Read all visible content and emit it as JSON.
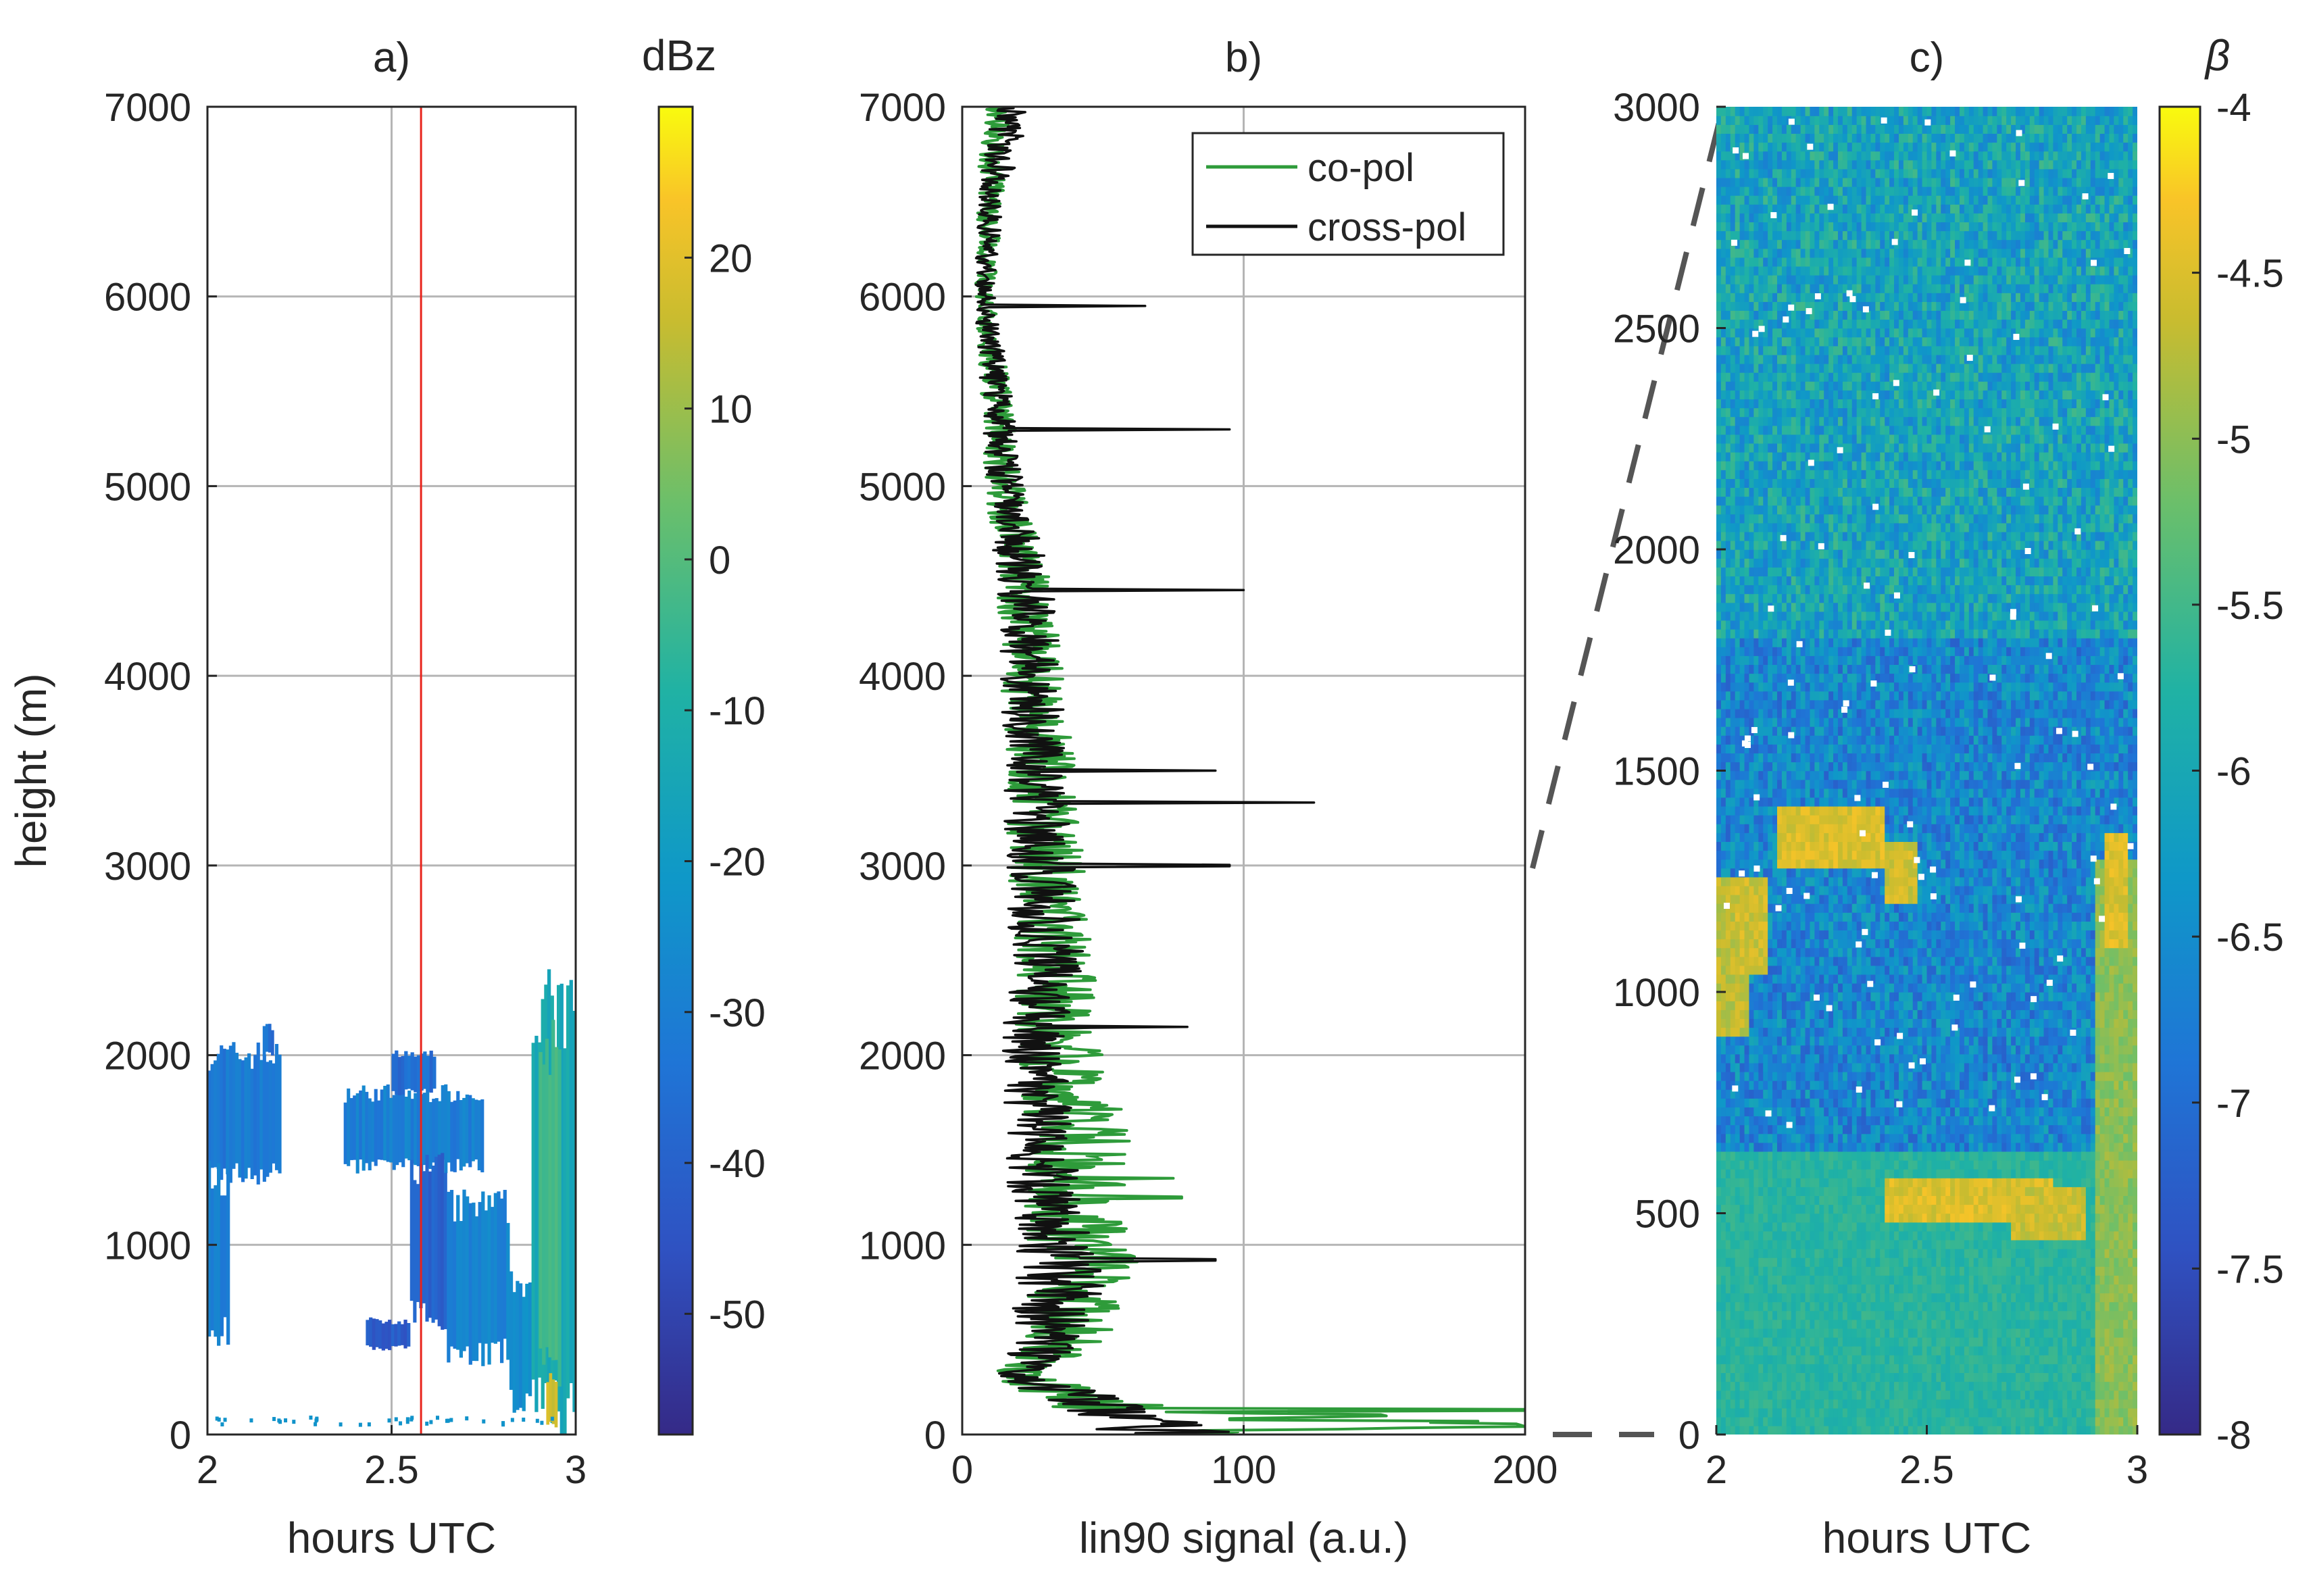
{
  "chart_data": [
    {
      "panel": "a)",
      "type": "heatmap",
      "title": "a)",
      "xlabel": "hours UTC",
      "ylabel": "height (m)",
      "xlim": [
        2,
        3
      ],
      "ylim": [
        0,
        7000
      ],
      "xticks": [
        2,
        2.5,
        3
      ],
      "xtick_labels": [
        "2",
        "2.5",
        "3"
      ],
      "yticks": [
        0,
        1000,
        2000,
        3000,
        4000,
        5000,
        6000,
        7000
      ],
      "ytick_labels": [
        "0",
        "1000",
        "2000",
        "3000",
        "4000",
        "5000",
        "6000",
        "7000"
      ],
      "grid": true,
      "marker_line": {
        "x": 2.58,
        "color": "#e8241c"
      },
      "colorbar": {
        "label": "dBz",
        "range": [
          -58,
          30
        ],
        "ticks": [
          -50,
          -40,
          -30,
          -20,
          -10,
          0,
          10,
          20
        ],
        "tick_labels": [
          "-50",
          "-40",
          "-30",
          "-20",
          "-10",
          "0",
          "10",
          "20"
        ]
      },
      "regions": [
        {
          "x": [
            2.0,
            2.2
          ],
          "y": [
            1350,
            2000
          ],
          "value": -32
        },
        {
          "x": [
            2.0,
            2.06
          ],
          "y": [
            500,
            1350
          ],
          "value": -30
        },
        {
          "x": [
            2.15,
            2.18
          ],
          "y": [
            2000,
            2150
          ],
          "value": -35
        },
        {
          "x": [
            2.37,
            2.75
          ],
          "y": [
            1400,
            1800
          ],
          "value": -30
        },
        {
          "x": [
            2.5,
            2.62
          ],
          "y": [
            1800,
            2000
          ],
          "value": -36
        },
        {
          "x": [
            2.55,
            2.65
          ],
          "y": [
            600,
            1400
          ],
          "value": -40
        },
        {
          "x": [
            2.65,
            2.82
          ],
          "y": [
            400,
            1200
          ],
          "value": -28
        },
        {
          "x": [
            2.82,
            2.88
          ],
          "y": [
            150,
            800
          ],
          "value": -24
        },
        {
          "x": [
            2.43,
            2.55
          ],
          "y": [
            450,
            600
          ],
          "value": -42
        },
        {
          "x": [
            2.88,
            3.0
          ],
          "y": [
            50,
            2200
          ],
          "value": -14
        },
        {
          "x": [
            2.9,
            2.96
          ],
          "y": [
            300,
            2000
          ],
          "value": -2
        },
        {
          "x": [
            2.92,
            2.95
          ],
          "y": [
            50,
            300
          ],
          "value": 18
        }
      ]
    },
    {
      "panel": "b)",
      "type": "line",
      "title": "b)",
      "xlabel": "lin90 signal (a.u.)",
      "ylabel": "",
      "xlim": [
        0,
        200
      ],
      "ylim": [
        0,
        7000
      ],
      "xticks": [
        0,
        100,
        200
      ],
      "xtick_labels": [
        "0",
        "100",
        "200"
      ],
      "yticks": [
        0,
        1000,
        2000,
        3000,
        4000,
        5000,
        6000,
        7000
      ],
      "ytick_labels": [
        "0",
        "1000",
        "2000",
        "3000",
        "4000",
        "5000",
        "6000",
        "7000"
      ],
      "grid": true,
      "legend": {
        "position": "top-right",
        "entries": [
          "co-pol",
          "cross-pol"
        ]
      },
      "series": [
        {
          "name": "co-pol",
          "color": "#2e9b3a",
          "y": [
            0,
            50,
            130,
            300,
            500,
            800,
            1200,
            1600,
            2000,
            2500,
            3000,
            3500,
            4000,
            4500,
            5000,
            5500,
            6000,
            6500,
            7000
          ],
          "x": [
            90,
            200,
            60,
            20,
            35,
            45,
            40,
            42,
            35,
            33,
            30,
            28,
            25,
            22,
            15,
            12,
            8,
            10,
            12
          ],
          "spikes": [
            [
              130,
              200
            ],
            [
              80,
              95
            ],
            [
              1350,
              75
            ],
            [
              1250,
              78
            ]
          ]
        },
        {
          "name": "cross-pol",
          "color": "#111111",
          "y": [
            0,
            100,
            300,
            500,
            800,
            1200,
            1600,
            2000,
            2500,
            3000,
            3500,
            4000,
            4500,
            5000,
            5500,
            6000,
            6500,
            7000
          ],
          "x": [
            70,
            60,
            20,
            30,
            35,
            30,
            28,
            25,
            30,
            28,
            25,
            25,
            22,
            15,
            12,
            8,
            10,
            18
          ],
          "spikes": [
            [
              920,
              90
            ],
            [
              2150,
              80
            ],
            [
              3330,
              125
            ],
            [
              4450,
              100
            ],
            [
              5300,
              95
            ],
            [
              5950,
              65
            ],
            [
              3500,
              90
            ],
            [
              3000,
              95
            ]
          ]
        }
      ]
    },
    {
      "panel": "c)",
      "type": "heatmap",
      "title": "c)",
      "xlabel": "hours UTC",
      "ylabel": "",
      "xlim": [
        2,
        3
      ],
      "ylim": [
        0,
        3000
      ],
      "xticks": [
        2,
        2.5,
        3
      ],
      "xtick_labels": [
        "2",
        "2.5",
        "3"
      ],
      "yticks": [
        0,
        500,
        1000,
        1500,
        2000,
        2500,
        3000
      ],
      "ytick_labels": [
        "0",
        "500",
        "1000",
        "1500",
        "2000",
        "2500",
        "3000"
      ],
      "colorbar": {
        "label": "β",
        "range": [
          -8,
          -4
        ],
        "ticks": [
          -8,
          -7.5,
          -7,
          -6.5,
          -6,
          -5.5,
          -5,
          -4.5,
          -4
        ],
        "tick_labels": [
          "-8",
          "-7.5",
          "-7",
          "-6.5",
          "-6",
          "-5.5",
          "-5",
          "-4.5",
          "-4"
        ]
      },
      "zoom_link": {
        "from_panel": "b)",
        "height_range": [
          0,
          3000
        ]
      },
      "regions": [
        {
          "x": [
            2.0,
            3.0
          ],
          "y": [
            0,
            650
          ],
          "value": -5.7
        },
        {
          "x": [
            2.0,
            3.0
          ],
          "y": [
            650,
            1800
          ],
          "value": -6.6
        },
        {
          "x": [
            2.0,
            3.0
          ],
          "y": [
            1800,
            3000
          ],
          "value": -6.1
        },
        {
          "x": [
            2.15,
            2.4
          ],
          "y": [
            1280,
            1420
          ],
          "value": -4.5
        },
        {
          "x": [
            2.4,
            2.48
          ],
          "y": [
            1200,
            1330
          ],
          "value": -4.6
        },
        {
          "x": [
            2.0,
            2.08
          ],
          "y": [
            900,
            1250
          ],
          "value": -4.7
        },
        {
          "x": [
            2.05,
            2.12
          ],
          "y": [
            1050,
            1250
          ],
          "value": -4.6
        },
        {
          "x": [
            2.4,
            2.8
          ],
          "y": [
            480,
            580
          ],
          "value": -4.5
        },
        {
          "x": [
            2.7,
            2.88
          ],
          "y": [
            450,
            560
          ],
          "value": -4.6
        },
        {
          "x": [
            2.9,
            3.0
          ],
          "y": [
            0,
            1300
          ],
          "value": -5.0
        },
        {
          "x": [
            2.92,
            2.98
          ],
          "y": [
            1100,
            1350
          ],
          "value": -4.5
        }
      ]
    }
  ]
}
